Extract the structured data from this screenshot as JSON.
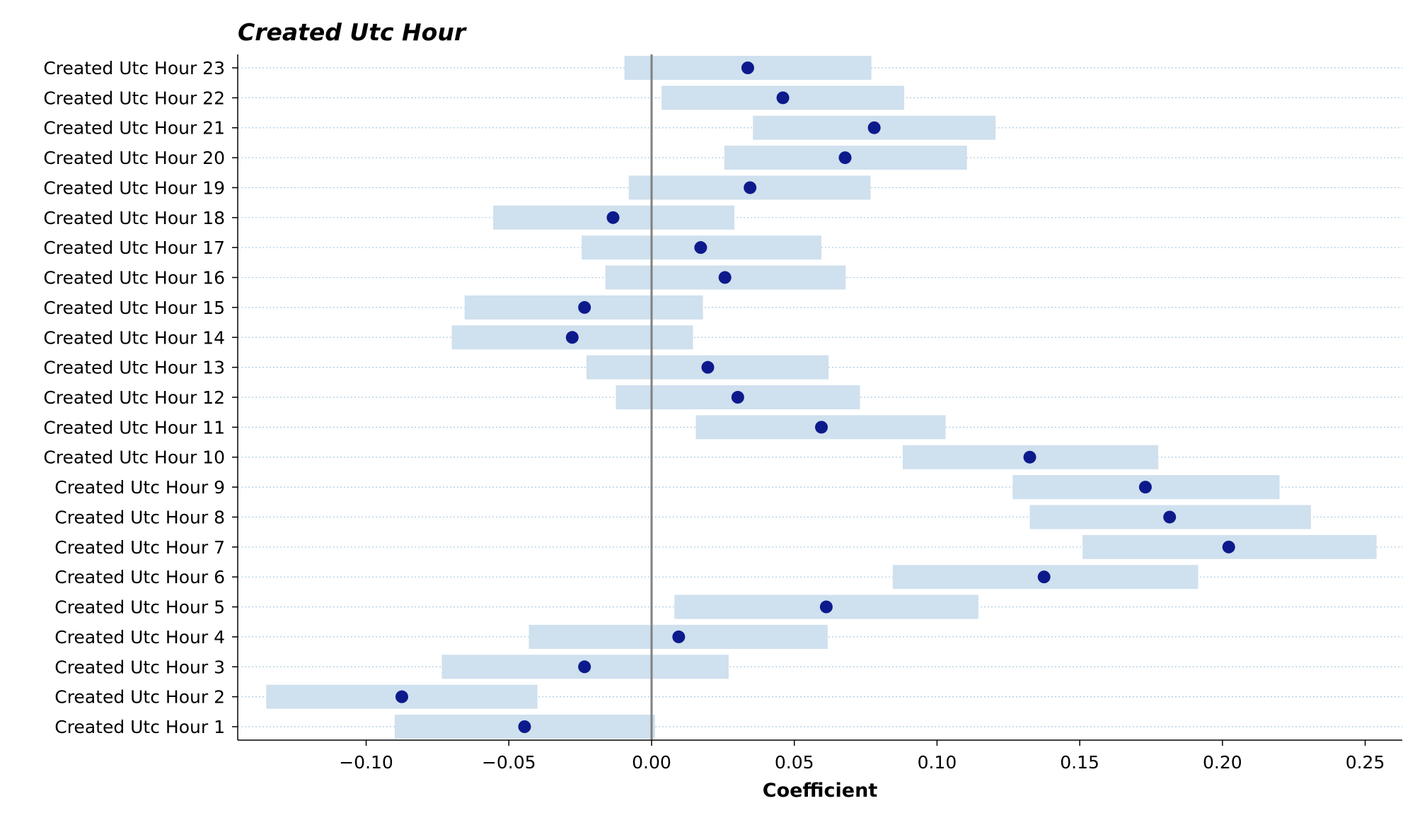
{
  "chart_data": {
    "type": "scatter",
    "title": "Created Utc Hour",
    "xlabel": "Coefficient",
    "ylabel": "",
    "xlim": [
      -0.145,
      0.263
    ],
    "xticks": [
      -0.1,
      -0.05,
      0.0,
      0.05,
      0.1,
      0.15,
      0.2,
      0.25
    ],
    "xtick_labels": [
      "−0.10",
      "−0.05",
      "0.00",
      "0.05",
      "0.10",
      "0.15",
      "0.20",
      "0.25"
    ],
    "grid": "horizontal dotted",
    "reference_line_x": 0,
    "categories": [
      "Created Utc Hour 1",
      "Created Utc Hour 2",
      "Created Utc Hour 3",
      "Created Utc Hour 4",
      "Created Utc Hour 5",
      "Created Utc Hour 6",
      "Created Utc Hour 7",
      "Created Utc Hour 8",
      "Created Utc Hour 9",
      "Created Utc Hour 10",
      "Created Utc Hour 11",
      "Created Utc Hour 12",
      "Created Utc Hour 13",
      "Created Utc Hour 14",
      "Created Utc Hour 15",
      "Created Utc Hour 16",
      "Created Utc Hour 17",
      "Created Utc Hour 18",
      "Created Utc Hour 19",
      "Created Utc Hour 20",
      "Created Utc Hour 21",
      "Created Utc Hour 22",
      "Created Utc Hour 23"
    ],
    "values": [
      -0.0445,
      -0.0875,
      -0.0235,
      0.0095,
      0.0612,
      0.1375,
      0.2022,
      0.1815,
      0.173,
      0.1325,
      0.0595,
      0.0302,
      0.0197,
      -0.0278,
      -0.0235,
      0.0257,
      0.0172,
      -0.0135,
      0.0345,
      0.0678,
      0.078,
      0.046,
      0.0337
    ],
    "ci_low": [
      -0.09,
      -0.135,
      -0.0735,
      -0.043,
      0.008,
      0.0845,
      0.151,
      0.1325,
      0.1265,
      0.088,
      0.0155,
      -0.0125,
      -0.0228,
      -0.07,
      -0.0655,
      -0.0162,
      -0.0245,
      -0.0555,
      -0.008,
      0.0255,
      0.0355,
      0.0035,
      -0.0095
    ],
    "ci_high": [
      0.0012,
      -0.04,
      0.027,
      0.0617,
      0.1145,
      0.1915,
      0.254,
      0.231,
      0.22,
      0.1775,
      0.103,
      0.073,
      0.062,
      0.0145,
      0.018,
      0.068,
      0.0595,
      0.029,
      0.0767,
      0.1105,
      0.1205,
      0.0885,
      0.077
    ],
    "colors": {
      "point": "#0d1a8c",
      "interval": "#cfe0ee",
      "zero_line": "#808080",
      "grid": "#a9cbe2",
      "axis": "#000000"
    }
  }
}
